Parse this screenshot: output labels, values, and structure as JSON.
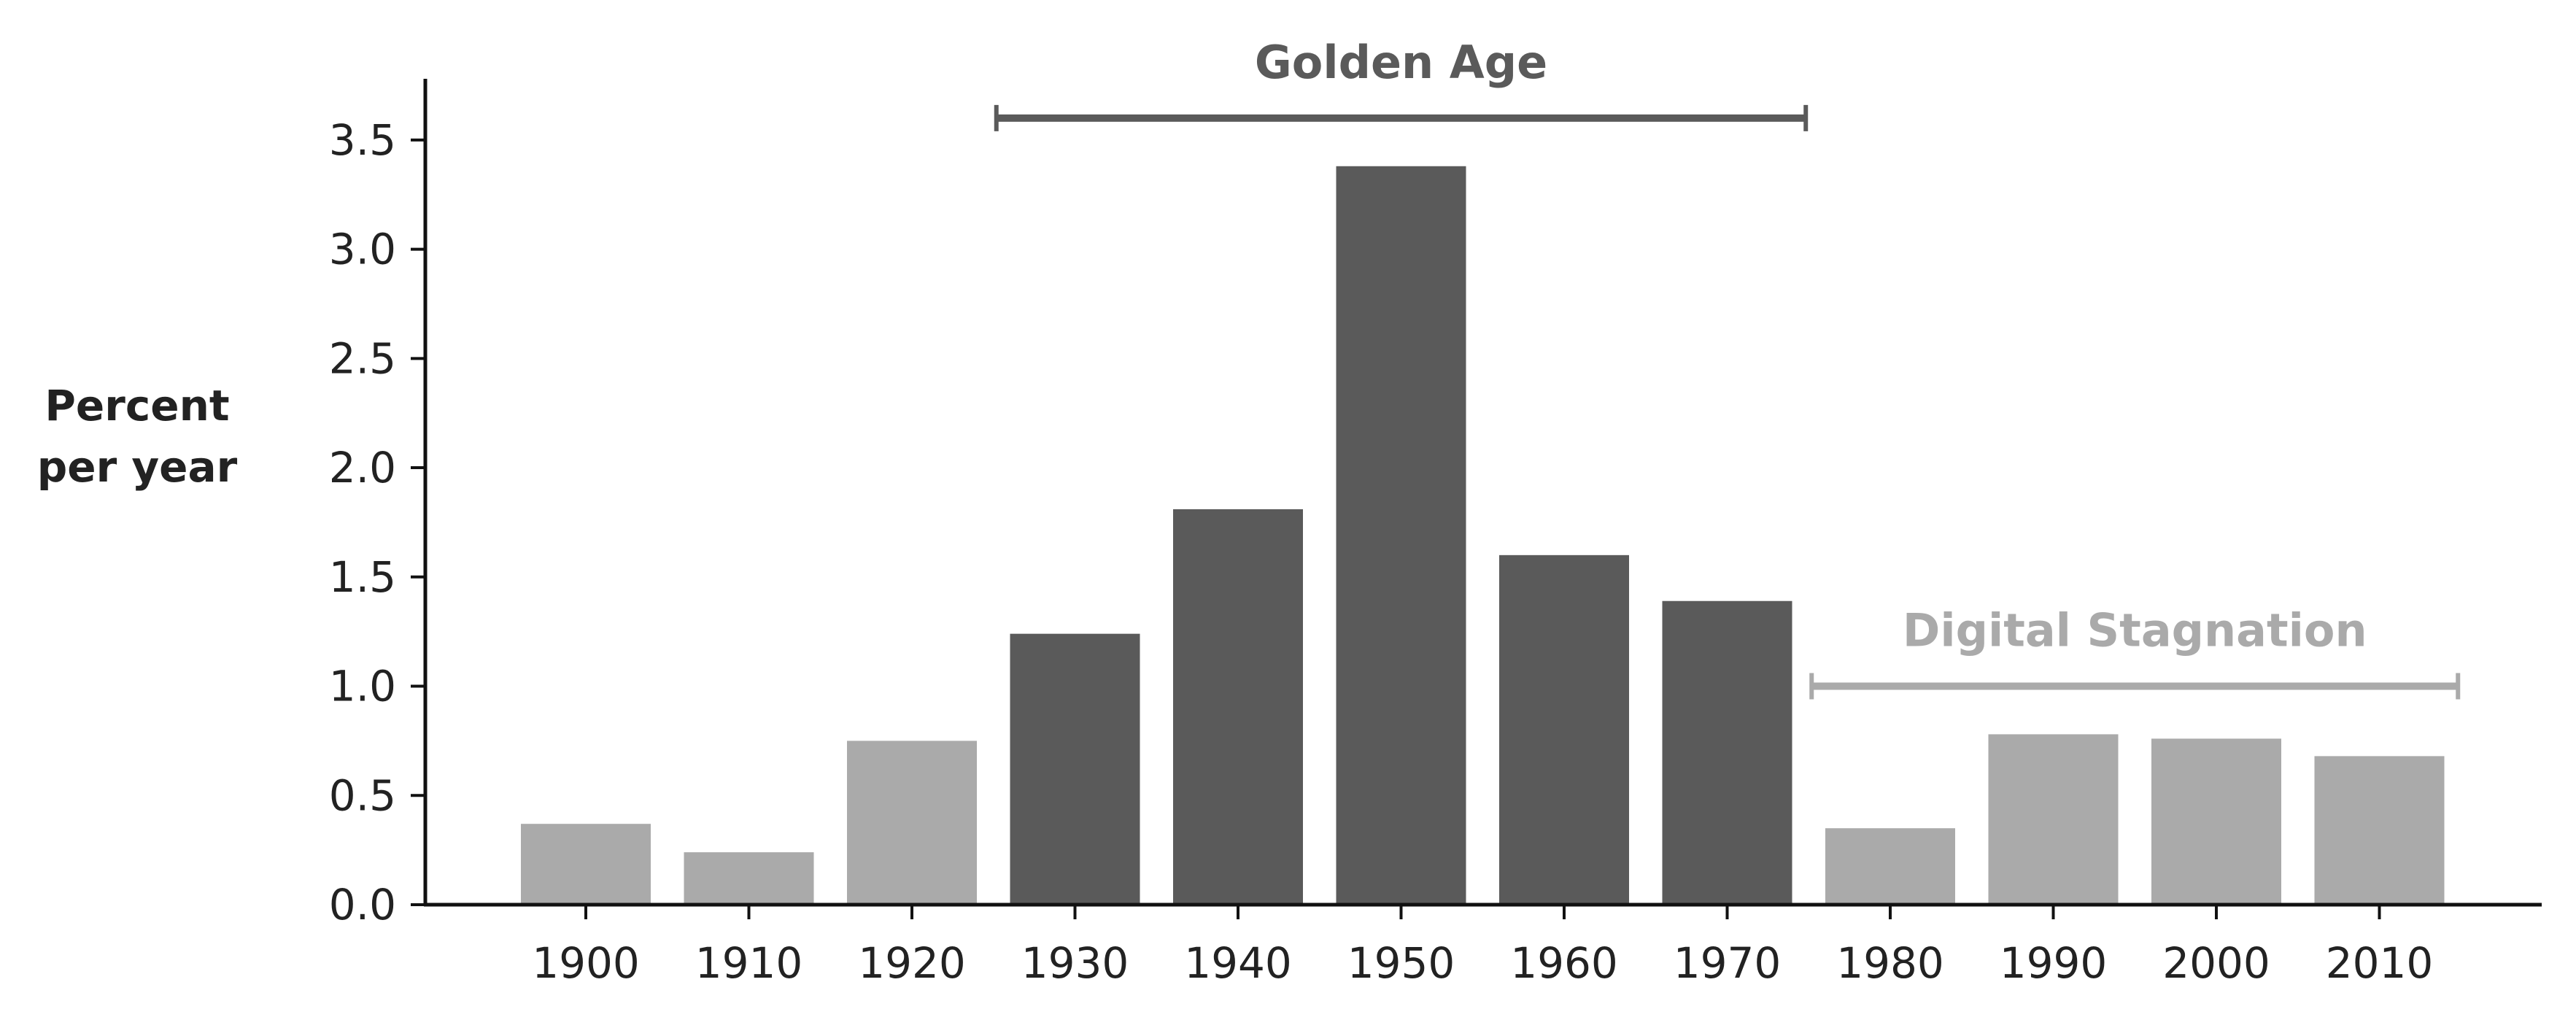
{
  "chart_data": {
    "type": "bar",
    "title": "",
    "ylabel_lines": [
      "Percent",
      "per year"
    ],
    "xlabel": "",
    "categories": [
      "1900",
      "1910",
      "1920",
      "1930",
      "1940",
      "1950",
      "1960",
      "1970",
      "1980",
      "1990",
      "2000",
      "2010"
    ],
    "values": [
      0.37,
      0.24,
      0.75,
      1.24,
      1.81,
      3.38,
      1.6,
      1.39,
      0.35,
      0.78,
      0.76,
      0.68
    ],
    "bar_colors": [
      "#aaaaaa",
      "#aaaaaa",
      "#aaaaaa",
      "#5a5a5a",
      "#5a5a5a",
      "#5a5a5a",
      "#5a5a5a",
      "#5a5a5a",
      "#aaaaaa",
      "#aaaaaa",
      "#aaaaaa",
      "#aaaaaa"
    ],
    "ylim": [
      0,
      3.78
    ],
    "yticks": [
      "0.0",
      "0.5",
      "1.0",
      "1.5",
      "2.0",
      "2.5",
      "3.0",
      "3.5"
    ],
    "grid": false,
    "annotations": [
      {
        "label": "Golden Age",
        "from_category": "1930",
        "to_category": "1970",
        "y": 3.6,
        "color": "#5a5a5a"
      },
      {
        "label": "Digital Stagnation",
        "from_category": "1980",
        "to_category": "2010",
        "y": 1.0,
        "color": "#aaaaaa"
      }
    ]
  }
}
